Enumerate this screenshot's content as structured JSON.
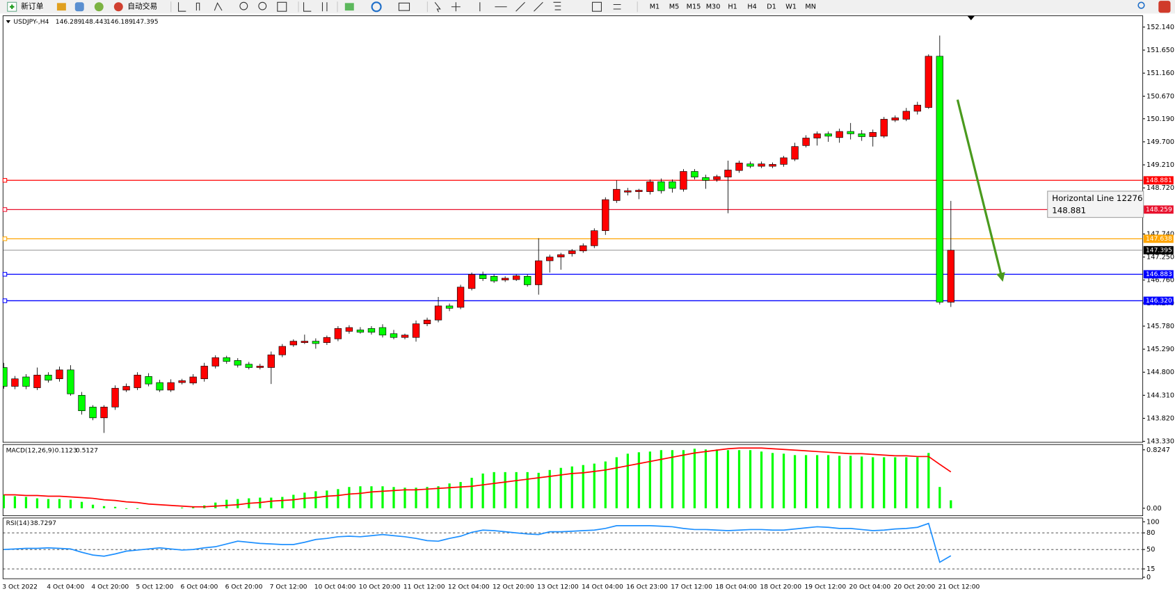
{
  "toolbar": {
    "new_order": "新订单",
    "auto_trading": "自动交易",
    "timeframes": [
      "M1",
      "M5",
      "M15",
      "M30",
      "H1",
      "H4",
      "D1",
      "W1",
      "MN"
    ]
  },
  "chart_data": [
    {
      "type": "candlestick",
      "symbol": "USDJPY-,H4",
      "categories": [
        "3 Oct 2022",
        null,
        null,
        null,
        "4 Oct 04:00",
        null,
        null,
        null,
        "4 Oct 20:00",
        null,
        null,
        null,
        "5 Oct 12:00",
        null,
        null,
        null,
        "6 Oct 04:00",
        null,
        null,
        null,
        "6 Oct 20:00",
        null,
        null,
        null,
        "7 Oct 12:00",
        null,
        null,
        null,
        "10 Oct 04:00",
        null,
        null,
        null,
        "10 Oct 20:00",
        null,
        null,
        null,
        "11 Oct 12:00",
        null,
        null,
        null,
        "12 Oct 04:00",
        null,
        null,
        null,
        "12 Oct 20:00",
        null,
        null,
        null,
        "13 Oct 12:00",
        null,
        null,
        null,
        "14 Oct 04:00",
        null,
        null,
        null,
        "16 Oct 23:00",
        null,
        null,
        null,
        "17 Oct 12:00",
        null,
        null,
        null,
        "18 Oct 04:00",
        null,
        null,
        null,
        "18 Oct 20:00",
        null,
        null,
        null,
        "19 Oct 12:00",
        null,
        null,
        null,
        "20 Oct 04:00",
        null,
        null,
        null,
        "20 Oct 20:00",
        null,
        null,
        null,
        "21 Oct 12:00",
        null
      ],
      "open": [
        144.9,
        144.5,
        144.7,
        144.47,
        144.74,
        144.66,
        144.85,
        144.31,
        144.06,
        143.83,
        144.06,
        144.42,
        144.47,
        144.71,
        144.58,
        144.42,
        144.58,
        144.57,
        144.66,
        144.93,
        145.11,
        145.05,
        144.97,
        144.9,
        144.9,
        145.17,
        145.38,
        145.43,
        145.46,
        145.43,
        145.51,
        145.67,
        145.7,
        145.73,
        145.75,
        145.62,
        145.54,
        145.54,
        145.83,
        145.91,
        146.21,
        146.18,
        146.58,
        146.87,
        146.84,
        146.76,
        146.77,
        146.84,
        146.66,
        147.17,
        147.25,
        147.32,
        147.38,
        147.49,
        147.81,
        148.45,
        148.63,
        148.64,
        148.64,
        148.85,
        148.85,
        148.69,
        149.07,
        148.94,
        148.9,
        148.95,
        149.09,
        149.23,
        149.18,
        149.18,
        149.22,
        149.33,
        149.62,
        149.78,
        149.87,
        149.79,
        149.92,
        149.87,
        149.81,
        149.82,
        150.16,
        150.18,
        150.35,
        150.43,
        151.52,
        146.289
      ],
      "high": [
        145.0,
        144.72,
        144.76,
        144.9,
        144.8,
        144.92,
        144.95,
        144.38,
        144.1,
        144.1,
        144.52,
        144.56,
        144.8,
        144.78,
        144.64,
        144.65,
        144.66,
        144.76,
        145.0,
        145.16,
        145.15,
        145.1,
        145.02,
        144.98,
        145.24,
        145.4,
        145.5,
        145.6,
        145.52,
        145.58,
        145.78,
        145.8,
        145.76,
        145.78,
        145.82,
        145.7,
        145.62,
        145.9,
        145.96,
        146.4,
        146.26,
        146.66,
        146.92,
        146.94,
        146.88,
        146.84,
        146.88,
        146.88,
        147.65,
        147.3,
        147.34,
        147.42,
        147.54,
        147.86,
        148.52,
        148.88,
        148.72,
        148.7,
        148.9,
        148.92,
        148.9,
        149.12,
        149.12,
        149.0,
        149.0,
        149.3,
        149.3,
        149.28,
        149.28,
        149.26,
        149.4,
        149.68,
        149.84,
        149.92,
        149.92,
        149.98,
        150.1,
        149.95,
        149.96,
        150.23,
        150.26,
        150.42,
        150.55,
        151.56,
        151.96,
        148.443
      ],
      "low": [
        144.45,
        144.44,
        144.44,
        144.42,
        144.58,
        144.6,
        144.3,
        143.9,
        143.78,
        143.51,
        144.0,
        144.38,
        144.42,
        144.5,
        144.38,
        144.38,
        144.54,
        144.53,
        144.6,
        144.88,
        144.98,
        144.9,
        144.86,
        144.86,
        144.55,
        145.12,
        145.34,
        145.4,
        145.3,
        145.38,
        145.46,
        145.62,
        145.62,
        145.6,
        145.54,
        145.5,
        145.5,
        145.45,
        145.78,
        145.86,
        146.1,
        146.14,
        146.54,
        146.74,
        146.7,
        146.72,
        146.74,
        146.62,
        146.45,
        146.92,
        146.98,
        147.26,
        147.34,
        147.44,
        147.72,
        148.4,
        148.56,
        148.48,
        148.58,
        148.6,
        148.62,
        148.64,
        148.9,
        148.7,
        148.85,
        148.18,
        149.04,
        149.14,
        149.14,
        149.14,
        149.17,
        149.29,
        149.58,
        149.62,
        149.7,
        149.68,
        149.75,
        149.72,
        149.6,
        149.78,
        150.12,
        150.14,
        150.28,
        150.4,
        146.24,
        146.189
      ],
      "close": [
        144.5,
        144.66,
        144.5,
        144.74,
        144.63,
        144.85,
        144.34,
        143.98,
        143.83,
        144.06,
        144.46,
        144.5,
        144.74,
        144.55,
        144.42,
        144.58,
        144.62,
        144.7,
        144.93,
        145.11,
        145.03,
        144.95,
        144.9,
        144.93,
        145.17,
        145.35,
        145.46,
        145.46,
        145.41,
        145.54,
        145.73,
        145.75,
        145.65,
        145.65,
        145.59,
        145.54,
        145.59,
        145.83,
        145.91,
        146.21,
        146.16,
        146.61,
        146.88,
        146.79,
        146.74,
        146.8,
        146.85,
        146.66,
        147.17,
        147.25,
        147.3,
        147.38,
        147.49,
        147.81,
        148.47,
        148.69,
        148.66,
        148.67,
        148.85,
        148.66,
        148.71,
        149.07,
        148.95,
        148.88,
        148.96,
        149.1,
        149.25,
        149.18,
        149.23,
        149.22,
        149.36,
        149.6,
        149.78,
        149.87,
        149.82,
        149.92,
        149.87,
        149.81,
        149.9,
        150.18,
        150.21,
        150.35,
        150.48,
        151.52,
        146.29,
        147.395
      ],
      "up_color": "#ff0000",
      "down_color": "#00ff00",
      "ylim": [
        143.31,
        152.38
      ],
      "yticks": [
        {
          "value": 152.14,
          "label": "152.140"
        },
        {
          "value": 151.65,
          "label": "151.650"
        },
        {
          "value": 151.16,
          "label": "151.160"
        },
        {
          "value": 150.67,
          "label": "150.670"
        },
        {
          "value": 150.19,
          "label": "150.190"
        },
        {
          "value": 149.7,
          "label": "149.700"
        },
        {
          "value": 149.21,
          "label": "149.210"
        },
        {
          "value": 148.72,
          "label": "148.720"
        },
        {
          "value": 147.74,
          "label": "147.740"
        },
        {
          "value": 147.25,
          "label": "147.250"
        },
        {
          "value": 146.76,
          "label": "146.760"
        },
        {
          "value": 146.27,
          "label": "146.270"
        },
        {
          "value": 145.78,
          "label": "145.780"
        },
        {
          "value": 145.29,
          "label": "145.290"
        },
        {
          "value": 144.8,
          "label": "144.800"
        },
        {
          "value": 144.31,
          "label": "144.310"
        },
        {
          "value": 143.82,
          "label": "143.820"
        },
        {
          "value": 143.33,
          "label": "143.330"
        }
      ],
      "horizontal_lines": [
        {
          "value": 148.881,
          "color": "#ff0000"
        },
        {
          "value": 148.259,
          "color": "#e8112d"
        },
        {
          "value": 147.638,
          "color": "#ffa500"
        },
        {
          "value": 146.883,
          "color": "#0000ff"
        },
        {
          "value": 146.32,
          "label": "146.320",
          "color": "#0000ff"
        }
      ],
      "current_price_color": "#808080",
      "annotation": "Horizontal Line 12276"
    },
    {
      "type": "macd",
      "title": "MACD(12,26,9)",
      "histogram": {
        "color": "#00ff00",
        "values": [
          0.19,
          0.17,
          0.16,
          0.14,
          0.13,
          0.13,
          0.12,
          0.09,
          0.05,
          0.03,
          0.02,
          -0.01,
          -0.01,
          0.0,
          0.0,
          0.0,
          0.01,
          0.02,
          0.04,
          0.08,
          0.12,
          0.13,
          0.14,
          0.15,
          0.15,
          0.16,
          0.19,
          0.22,
          0.24,
          0.25,
          0.27,
          0.3,
          0.31,
          0.31,
          0.31,
          0.3,
          0.29,
          0.29,
          0.3,
          0.31,
          0.35,
          0.37,
          0.43,
          0.49,
          0.51,
          0.51,
          0.51,
          0.51,
          0.5,
          0.54,
          0.57,
          0.59,
          0.61,
          0.63,
          0.66,
          0.72,
          0.77,
          0.79,
          0.8,
          0.82,
          0.82,
          0.82,
          0.84,
          0.83,
          0.83,
          0.82,
          0.82,
          0.82,
          0.8,
          0.78,
          0.77,
          0.75,
          0.75,
          0.75,
          0.75,
          0.74,
          0.74,
          0.73,
          0.72,
          0.72,
          0.72,
          0.72,
          0.72,
          0.78,
          0.3,
          0.1123
        ]
      },
      "signal": {
        "color": "#ff0000",
        "values": [
          0.19,
          0.19,
          0.18,
          0.18,
          0.17,
          0.17,
          0.16,
          0.15,
          0.14,
          0.12,
          0.11,
          0.09,
          0.08,
          0.06,
          0.05,
          0.04,
          0.03,
          0.02,
          0.02,
          0.03,
          0.04,
          0.05,
          0.07,
          0.08,
          0.1,
          0.11,
          0.12,
          0.14,
          0.15,
          0.17,
          0.18,
          0.2,
          0.21,
          0.23,
          0.24,
          0.25,
          0.26,
          0.26,
          0.27,
          0.28,
          0.29,
          0.3,
          0.31,
          0.33,
          0.35,
          0.37,
          0.39,
          0.41,
          0.43,
          0.45,
          0.47,
          0.49,
          0.5,
          0.52,
          0.54,
          0.57,
          0.6,
          0.63,
          0.66,
          0.69,
          0.72,
          0.75,
          0.78,
          0.8,
          0.82,
          0.84,
          0.85,
          0.85,
          0.85,
          0.84,
          0.83,
          0.82,
          0.81,
          0.8,
          0.79,
          0.78,
          0.77,
          0.77,
          0.76,
          0.75,
          0.74,
          0.74,
          0.73,
          0.73,
          0.62,
          0.5127
        ]
      },
      "ylim": [
        -0.106,
        0.899
      ],
      "yticks": [
        0.8247,
        {
          "value": 0,
          "label": "0.00"
        }
      ]
    },
    {
      "type": "line",
      "title": "RSI(14)",
      "color": "#1e90ff",
      "values": [
        50,
        51,
        52,
        52,
        53,
        52,
        51,
        45,
        40,
        38,
        42,
        47,
        49,
        51,
        53,
        51,
        49,
        50,
        53,
        55,
        60,
        65,
        63,
        61,
        60,
        59,
        59,
        63,
        68,
        70,
        73,
        74,
        73,
        75,
        77,
        75,
        73,
        70,
        66,
        65,
        70,
        74,
        81,
        85,
        84,
        82,
        80,
        78,
        77,
        82,
        82,
        83,
        84,
        85,
        88,
        93,
        93,
        93,
        93,
        92,
        91,
        88,
        86,
        86,
        85,
        84,
        85,
        86,
        86,
        85,
        85,
        87,
        89,
        91,
        90,
        88,
        88,
        86,
        84,
        85,
        87,
        88,
        90,
        97,
        27,
        38.7297
      ],
      "ylim": [
        -2.7,
        106.8
      ],
      "yticks": [
        100,
        80,
        50,
        15,
        0
      ],
      "levels": [
        80,
        50,
        15
      ]
    }
  ]
}
